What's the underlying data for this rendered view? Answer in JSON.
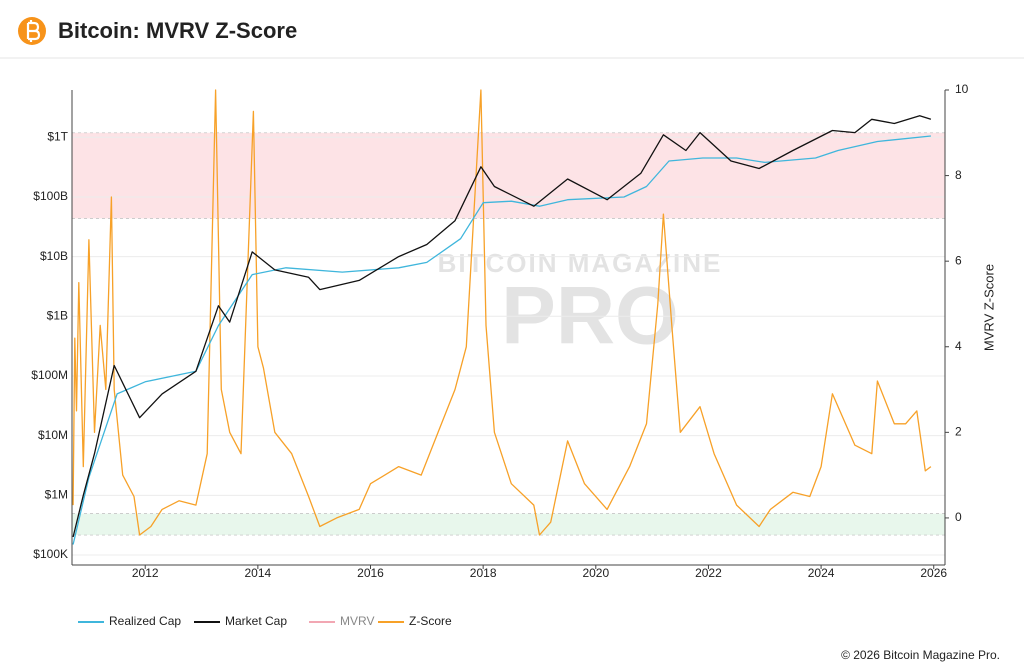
{
  "header": {
    "title": "Bitcoin: MVRV Z-Score"
  },
  "chart_data": {
    "type": "line",
    "y_axis_log": true,
    "grid": true,
    "xlim": [
      2010.7,
      2026.2
    ],
    "xticks": [
      2012,
      2014,
      2016,
      2018,
      2020,
      2022,
      2024,
      2026
    ],
    "ylim": [
      68000,
      6200000000000
    ],
    "yticks": [
      {
        "value": 100000,
        "label": "$100K"
      },
      {
        "value": 1000000,
        "label": "$1M"
      },
      {
        "value": 10000000,
        "label": "$10M"
      },
      {
        "value": 100000000,
        "label": "$100M"
      },
      {
        "value": 1000000000,
        "label": "$1B"
      },
      {
        "value": 10000000000,
        "label": "$10B"
      },
      {
        "value": 100000000000,
        "label": "$100B"
      },
      {
        "value": 1000000000000,
        "label": "$1T"
      }
    ],
    "y2lim": [
      -1.1,
      10
    ],
    "y2ticks": [
      0,
      2,
      4,
      6,
      8,
      10
    ],
    "y2_label": "MVRV Z-Score",
    "bands": [
      {
        "axis": "y2",
        "range": [
          7,
          9
        ],
        "color": "#fde3e6"
      },
      {
        "axis": "y2",
        "range": [
          -0.4,
          0.1
        ],
        "color": "#e8f7ec"
      }
    ],
    "series": [
      {
        "name": "Realized Cap",
        "color": "#3fb6dc",
        "x": [
          2010.72,
          2011.0,
          2011.5,
          2012.0,
          2012.9,
          2013.3,
          2013.9,
          2014.5,
          2015.5,
          2016.5,
          2017.0,
          2017.6,
          2018.0,
          2018.5,
          2019.0,
          2019.5,
          2020.5,
          2020.9,
          2021.3,
          2021.9,
          2022.5,
          2023.0,
          2023.9,
          2024.3,
          2025.0,
          2025.95
        ],
        "values": [
          150000,
          2000000,
          50000000,
          80000000,
          120000000,
          700000000,
          5000000000,
          6500000000,
          5500000000,
          6500000000,
          8000000000,
          20000000000,
          80000000000,
          85000000000,
          70000000000,
          90000000000,
          100000000000,
          150000000000,
          400000000000,
          450000000000,
          450000000000,
          380000000000,
          450000000000,
          600000000000,
          850000000000,
          1050000000000
        ]
      },
      {
        "name": "Market Cap",
        "color": "#111111",
        "x": [
          2010.72,
          2010.9,
          2011.1,
          2011.45,
          2011.9,
          2012.3,
          2012.9,
          2013.3,
          2013.5,
          2013.9,
          2014.3,
          2014.9,
          2015.1,
          2015.8,
          2016.5,
          2017.0,
          2017.5,
          2017.96,
          2018.2,
          2018.9,
          2019.5,
          2020.2,
          2020.8,
          2021.2,
          2021.6,
          2021.85,
          2022.4,
          2022.9,
          2023.5,
          2024.2,
          2024.6,
          2024.9,
          2025.3,
          2025.75,
          2025.95
        ],
        "values": [
          200000,
          1000000,
          5000000,
          150000000,
          20000000,
          50000000,
          120000000,
          1500000000,
          800000000,
          12000000000,
          6000000000,
          4500000000,
          2800000000,
          4000000000,
          10000000000,
          16000000000,
          40000000000,
          320000000000,
          150000000000,
          70000000000,
          200000000000,
          90000000000,
          250000000000,
          1100000000000,
          600000000000,
          1200000000000,
          400000000000,
          300000000000,
          600000000000,
          1300000000000,
          1200000000000,
          2000000000000,
          1700000000000,
          2300000000000,
          2000000000000
        ]
      },
      {
        "name": "MVRV",
        "color": "#f2a7b3",
        "hidden": true,
        "x": [],
        "values": []
      },
      {
        "name": "Z-Score",
        "color": "#f7a128",
        "axis": "y2",
        "x": [
          2010.72,
          2010.75,
          2010.78,
          2010.82,
          2010.9,
          2011.0,
          2011.1,
          2011.2,
          2011.3,
          2011.4,
          2011.45,
          2011.6,
          2011.8,
          2011.9,
          2012.1,
          2012.3,
          2012.6,
          2012.9,
          2013.1,
          2013.25,
          2013.35,
          2013.5,
          2013.7,
          2013.92,
          2014.0,
          2014.1,
          2014.3,
          2014.6,
          2014.9,
          2015.1,
          2015.4,
          2015.8,
          2016.0,
          2016.5,
          2016.9,
          2017.2,
          2017.5,
          2017.7,
          2017.96,
          2018.05,
          2018.2,
          2018.5,
          2018.9,
          2019.0,
          2019.2,
          2019.5,
          2019.8,
          2020.2,
          2020.6,
          2020.9,
          2021.1,
          2021.2,
          2021.35,
          2021.5,
          2021.85,
          2022.1,
          2022.5,
          2022.9,
          2023.1,
          2023.5,
          2023.8,
          2024.0,
          2024.2,
          2024.6,
          2024.9,
          2025.0,
          2025.3,
          2025.5,
          2025.7,
          2025.85,
          2025.95
        ],
        "values": [
          0.3,
          4.2,
          2.5,
          5.5,
          1.2,
          6.5,
          2.0,
          4.5,
          3.0,
          7.5,
          3.0,
          1.0,
          0.5,
          -0.4,
          -0.2,
          0.2,
          0.4,
          0.3,
          1.5,
          10,
          3,
          2,
          1.5,
          9.5,
          4.0,
          3.5,
          2.0,
          1.5,
          0.5,
          -0.2,
          0.0,
          0.2,
          0.8,
          1.2,
          1.0,
          2.0,
          3.0,
          4.0,
          10,
          4.5,
          2.0,
          0.8,
          0.3,
          -0.4,
          -0.1,
          1.8,
          0.8,
          0.2,
          1.2,
          2.2,
          5.0,
          7.1,
          4.5,
          2.0,
          2.6,
          1.5,
          0.3,
          -0.2,
          0.2,
          0.6,
          0.5,
          1.2,
          2.9,
          1.7,
          1.5,
          3.2,
          2.2,
          2.2,
          2.5,
          1.1,
          1.2
        ]
      }
    ],
    "watermark": {
      "top": "BITCOIN MAGAZINE",
      "main": "PRO"
    }
  },
  "footer": {
    "copyright": "© 2026 Bitcoin Magazine Pro."
  }
}
